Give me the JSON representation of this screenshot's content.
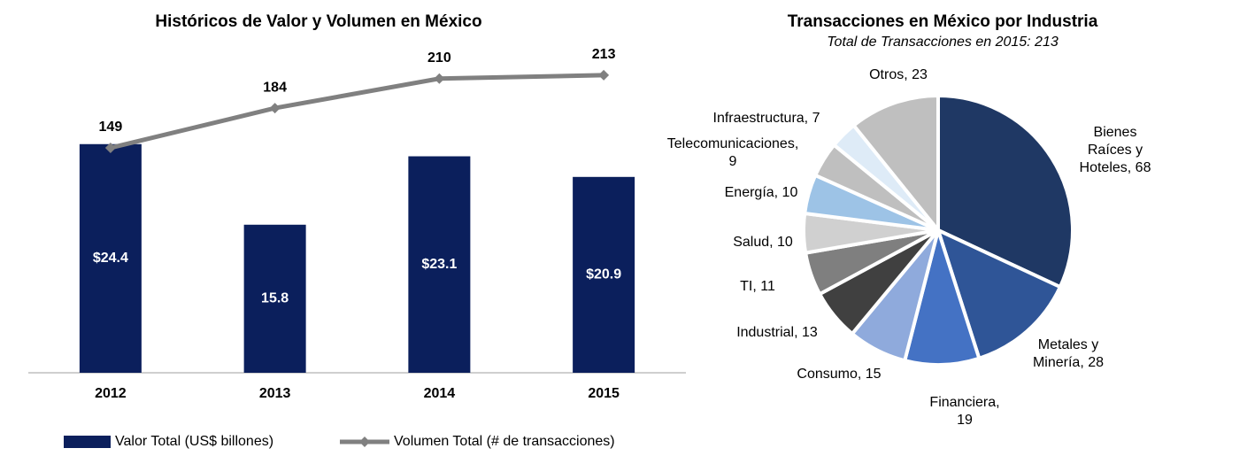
{
  "chart_data": [
    {
      "type": "bar",
      "title": "Históricos de Valor y Volumen en México",
      "categories": [
        "2012",
        "2013",
        "2014",
        "2015"
      ],
      "series": [
        {
          "name": "Valor Total (US$ billones)",
          "color": "#0b1f5c",
          "values": [
            24.4,
            15.8,
            23.1,
            20.9
          ],
          "value_labels": [
            "$24.4",
            "15.8",
            "$23.1",
            "$20.9"
          ]
        },
        {
          "name": "Volumen Total (# de transacciones)",
          "color": "#808080",
          "type": "line",
          "axis": "y2",
          "values": [
            149,
            184,
            210,
            213
          ]
        }
      ],
      "ylim": [
        0,
        36
      ],
      "y2lim": [
        -49,
        248
      ]
    },
    {
      "type": "pie",
      "title": "Transacciones en México por Industria",
      "subtitle": "Total de Transacciones en 2015: 213",
      "values": [
        68,
        28,
        19,
        15,
        13,
        11,
        10,
        10,
        9,
        7,
        23
      ],
      "value_labels": [
        [
          "Bienes",
          "Raíces y",
          "Hoteles, 68"
        ],
        [
          "Metales y",
          "Minería, 28"
        ],
        [
          "Financiera,",
          "19"
        ],
        [
          "Consumo, 15"
        ],
        [
          "Industrial, 13"
        ],
        [
          "TI, 11"
        ],
        [
          "Salud, 10"
        ],
        [
          "Energía, 10"
        ],
        [
          "Telecomunicaciones,",
          "9"
        ],
        [
          "Infraestructura, 7"
        ],
        [
          "Otros, 23"
        ]
      ],
      "colors": [
        "#1f3864",
        "#2f5597",
        "#4472c4",
        "#8faadc",
        "#404040",
        "#7f7f7f",
        "#d0d0d0",
        "#9dc3e6",
        "#bfbfbf",
        "#deebf7",
        "#bfbfbf"
      ]
    }
  ]
}
